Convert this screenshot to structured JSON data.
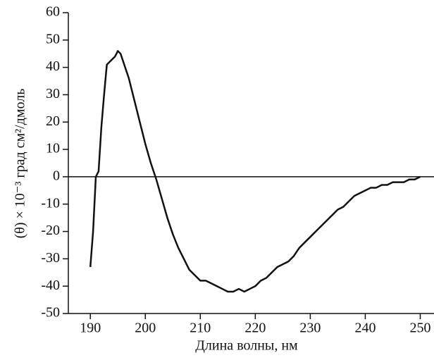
{
  "chart_data": {
    "type": "line",
    "x_label": "Длина волны, нм",
    "y_label": "(θ) × 10⁻³ град см²/дмоль",
    "x": [
      190,
      190.5,
      191,
      191.5,
      192,
      192.5,
      193,
      193.5,
      194,
      194.5,
      195,
      195.5,
      196,
      197,
      198,
      199,
      200,
      201,
      202,
      203,
      204,
      205,
      206,
      207,
      208,
      209,
      210,
      211,
      212,
      213,
      214,
      215,
      216,
      217,
      218,
      219,
      220,
      221,
      222,
      223,
      224,
      225,
      226,
      227,
      228,
      229,
      230,
      231,
      232,
      233,
      234,
      235,
      236,
      237,
      238,
      239,
      240,
      241,
      242,
      243,
      244,
      245,
      246,
      247,
      248,
      249,
      250
    ],
    "values": [
      -33,
      -20,
      0,
      2,
      18,
      30,
      41,
      42,
      43,
      44,
      46,
      45,
      42,
      36,
      28,
      20,
      12,
      5,
      -1,
      -8,
      -15,
      -21,
      -26,
      -30,
      -34,
      -36,
      -38,
      -38,
      -39,
      -40,
      -41,
      -42,
      -42,
      -41,
      -42,
      -41,
      -40,
      -38,
      -37,
      -35,
      -33,
      -32,
      -31,
      -29,
      -26,
      -24,
      -22,
      -20,
      -18,
      -16,
      -14,
      -12,
      -11,
      -9,
      -7,
      -6,
      -5,
      -4,
      -4,
      -3,
      -3,
      -2,
      -2,
      -2,
      -1,
      -1,
      0
    ],
    "color": "#111111",
    "xlim": [
      186,
      252.5
    ],
    "ylim": [
      -50,
      60
    ],
    "xticks": [
      190,
      200,
      210,
      220,
      230,
      240,
      250
    ],
    "yticks": [
      -50,
      -40,
      -30,
      -20,
      -10,
      0,
      10,
      20,
      30,
      40,
      50,
      60
    ],
    "zero_line": true,
    "grid": false
  }
}
